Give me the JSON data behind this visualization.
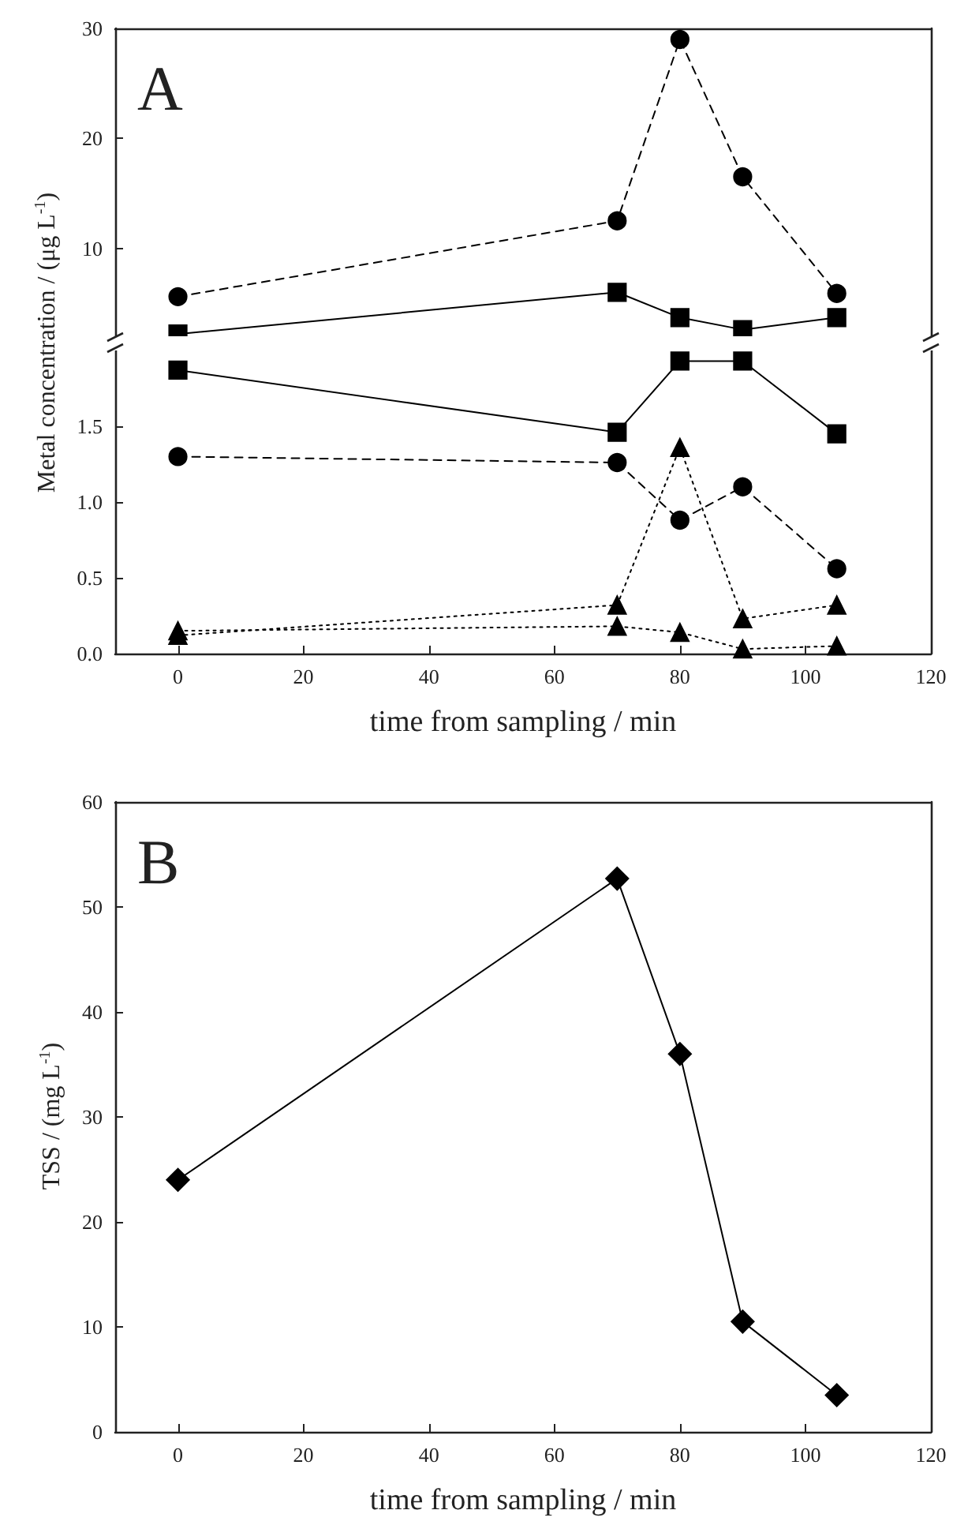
{
  "chart_data": [
    {
      "type": "line",
      "annotations": [
        "A"
      ],
      "x": [
        0,
        70,
        80,
        90,
        105
      ],
      "xlim": [
        -10,
        120
      ],
      "ylim": [
        2,
        30
      ],
      "yticks": [
        10,
        20,
        30
      ],
      "tick_labels": "y",
      "series": [
        {
          "color": "#000000",
          "marker": "circle",
          "line_style": "dashed",
          "values": [
            5.6,
            12.5,
            29.0,
            16.5,
            5.9
          ]
        },
        {
          "color": "#000000",
          "marker": "square",
          "line_style": "solid",
          "values": [
            2.2,
            6.0,
            3.7,
            2.6,
            3.7
          ]
        }
      ]
    },
    {
      "type": "line",
      "ylabel": "Metal concentration / (μg L$^{-1}$)",
      "xlabel": "time from sampling / min",
      "x": [
        0,
        70,
        80,
        90,
        105
      ],
      "xlim": [
        -10,
        120
      ],
      "xticks": [
        0,
        20,
        40,
        60,
        80,
        100,
        120
      ],
      "ylim": [
        0,
        2
      ],
      "yticks": [
        {
          "value": 0,
          "label": "0.0"
        },
        {
          "value": 0.5,
          "label": "0.5"
        },
        {
          "value": 1,
          "label": "1.0"
        },
        {
          "value": 1.5,
          "label": "1.5"
        }
      ],
      "series": [
        {
          "color": "#000000",
          "marker": "square",
          "line_style": "solid",
          "values": [
            1.87,
            1.46,
            1.93,
            1.93,
            1.45
          ]
        },
        {
          "color": "#000000",
          "marker": "circle",
          "line_style": "dashed",
          "values": [
            1.3,
            1.26,
            0.88,
            1.1,
            0.56
          ]
        },
        {
          "color": "#000000",
          "marker": "triangle",
          "line_style": "dotted",
          "values": [
            0.12,
            0.32,
            1.36,
            0.23,
            0.32
          ]
        },
        {
          "color": "#000000",
          "marker": "triangle",
          "line_style": "dotted",
          "values": [
            0.15,
            0.18,
            0.14,
            0.03,
            0.05
          ]
        }
      ]
    },
    {
      "type": "line",
      "annotations": [
        "B"
      ],
      "ylabel": "TSS / (mg L$^{-1}$)",
      "xlabel": "time from sampling / min",
      "x": [
        0,
        70,
        80,
        90,
        105
      ],
      "xlim": [
        -10,
        120
      ],
      "xticks": [
        0,
        20,
        40,
        60,
        80,
        100,
        120
      ],
      "ylim": [
        0,
        60
      ],
      "yticks": [
        0,
        10,
        20,
        30,
        40,
        50,
        60
      ],
      "series": [
        {
          "color": "#000000",
          "marker": "diamond",
          "line_style": "solid",
          "values": [
            24,
            52.7,
            36,
            10.5,
            3.5
          ]
        }
      ]
    }
  ]
}
